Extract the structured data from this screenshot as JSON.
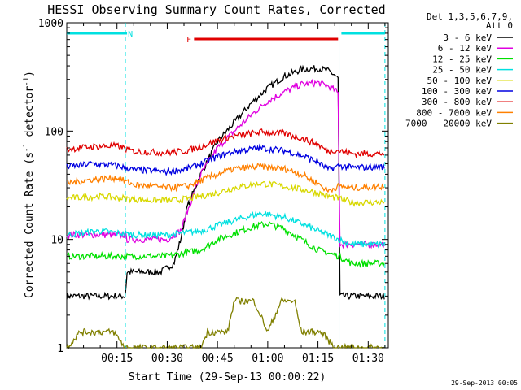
{
  "chart_data": {
    "type": "line",
    "title": "HESSI Observing Summary Count Rates, Corrected",
    "xlabel": "Start Time (29-Sep-13 00:00:22)",
    "ylabel_main": "Corrected Count Rate (s",
    "ylabel_sup": "-1",
    "ylabel_mid": " detector",
    "ylabel_sup2": "-1",
    "ylabel_end": ")",
    "yscale": "log",
    "ylim": [
      1,
      1000
    ],
    "xlim_min": [
      0,
      96
    ],
    "y_ticks": [
      {
        "value": 1,
        "label": "1"
      },
      {
        "value": 10,
        "label": "10"
      },
      {
        "value": 100,
        "label": "100"
      },
      {
        "value": 1000,
        "label": "1000"
      }
    ],
    "x_ticks": [
      {
        "value": 15,
        "label": "00:15"
      },
      {
        "value": 30,
        "label": "00:30"
      },
      {
        "value": 45,
        "label": "00:45"
      },
      {
        "value": 60,
        "label": "01:00"
      },
      {
        "value": 75,
        "label": "01:15"
      },
      {
        "value": 90,
        "label": "01:30"
      }
    ],
    "legend": {
      "header": [
        "Det 1,3,5,6,7,9,",
        "Att 0"
      ],
      "placement": "right"
    },
    "flags": [
      {
        "label": "N",
        "color": "#00e0e0",
        "segments": [
          [
            0,
            18
          ],
          [
            82,
            95
          ]
        ],
        "label_at": 19
      },
      {
        "label": "F",
        "color": "#e00000",
        "segments": [
          [
            38,
            81
          ]
        ],
        "label_at": 36.5
      }
    ],
    "boundaries": [
      {
        "x": 17.5,
        "style": "dashed"
      },
      {
        "x": 81.3,
        "style": "solid"
      },
      {
        "x": 95,
        "style": "dashed"
      }
    ],
    "series": [
      {
        "name": "3 - 6 keV",
        "color": "#000000",
        "points": [
          [
            0,
            3
          ],
          [
            17.5,
            3
          ],
          [
            18,
            5
          ],
          [
            28,
            5
          ],
          [
            32,
            6
          ],
          [
            34,
            10
          ],
          [
            36,
            20
          ],
          [
            40,
            40
          ],
          [
            45,
            80
          ],
          [
            50,
            120
          ],
          [
            55,
            180
          ],
          [
            60,
            250
          ],
          [
            65,
            320
          ],
          [
            70,
            370
          ],
          [
            75,
            380
          ],
          [
            78,
            360
          ],
          [
            80,
            330
          ],
          [
            81.2,
            300
          ],
          [
            81.4,
            3
          ],
          [
            95,
            3
          ]
        ]
      },
      {
        "name": "6 - 12 keV",
        "color": "#e000e0",
        "points": [
          [
            0,
            11
          ],
          [
            17.5,
            11
          ],
          [
            18,
            10
          ],
          [
            30,
            10
          ],
          [
            34,
            12
          ],
          [
            36,
            18
          ],
          [
            40,
            40
          ],
          [
            45,
            70
          ],
          [
            50,
            100
          ],
          [
            55,
            140
          ],
          [
            60,
            190
          ],
          [
            65,
            230
          ],
          [
            70,
            270
          ],
          [
            75,
            280
          ],
          [
            78,
            260
          ],
          [
            80,
            240
          ],
          [
            81.2,
            220
          ],
          [
            81.4,
            9
          ],
          [
            95,
            9
          ]
        ]
      },
      {
        "name": "12 - 25 keV",
        "color": "#00e000",
        "points": [
          [
            0,
            7
          ],
          [
            10,
            7
          ],
          [
            20,
            7
          ],
          [
            30,
            7
          ],
          [
            40,
            8
          ],
          [
            45,
            10
          ],
          [
            55,
            13
          ],
          [
            60,
            14
          ],
          [
            65,
            12.5
          ],
          [
            70,
            10
          ],
          [
            75,
            8
          ],
          [
            78,
            7.5
          ],
          [
            81.3,
            7
          ],
          [
            85,
            6
          ],
          [
            95,
            6
          ]
        ]
      },
      {
        "name": "25 - 50 keV",
        "color": "#00e0e0",
        "points": [
          [
            0,
            11
          ],
          [
            10,
            12
          ],
          [
            20,
            11
          ],
          [
            30,
            11
          ],
          [
            40,
            12
          ],
          [
            50,
            15
          ],
          [
            58,
            17.5
          ],
          [
            65,
            16
          ],
          [
            70,
            14
          ],
          [
            75,
            12
          ],
          [
            78,
            11
          ],
          [
            81.3,
            10
          ],
          [
            85,
            9
          ],
          [
            95,
            9
          ]
        ]
      },
      {
        "name": "50 - 100 keV",
        "color": "#d8d800",
        "points": [
          [
            0,
            24
          ],
          [
            10,
            25
          ],
          [
            17.5,
            24
          ],
          [
            25,
            23
          ],
          [
            33,
            23
          ],
          [
            40,
            25
          ],
          [
            45,
            27
          ],
          [
            50,
            30
          ],
          [
            58,
            33
          ],
          [
            65,
            31
          ],
          [
            70,
            29
          ],
          [
            75,
            27
          ],
          [
            78,
            25
          ],
          [
            81.3,
            24
          ],
          [
            85,
            22
          ],
          [
            95,
            22
          ]
        ]
      },
      {
        "name": "100 - 300 keV",
        "color": "#0000e0",
        "points": [
          [
            0,
            47
          ],
          [
            8,
            50
          ],
          [
            15,
            48
          ],
          [
            20,
            44
          ],
          [
            30,
            42
          ],
          [
            36,
            45
          ],
          [
            40,
            50
          ],
          [
            45,
            58
          ],
          [
            50,
            65
          ],
          [
            58,
            70
          ],
          [
            65,
            66
          ],
          [
            70,
            60
          ],
          [
            75,
            52
          ],
          [
            78,
            44
          ],
          [
            80,
            46
          ],
          [
            81.3,
            48
          ],
          [
            85,
            46
          ],
          [
            95,
            47
          ]
        ]
      },
      {
        "name": "300 - 800 keV",
        "color": "#e00000",
        "points": [
          [
            0,
            68
          ],
          [
            8,
            72
          ],
          [
            15,
            73
          ],
          [
            20,
            65
          ],
          [
            30,
            63
          ],
          [
            36,
            66
          ],
          [
            40,
            72
          ],
          [
            45,
            82
          ],
          [
            50,
            90
          ],
          [
            58,
            98
          ],
          [
            65,
            95
          ],
          [
            70,
            86
          ],
          [
            75,
            75
          ],
          [
            78,
            65
          ],
          [
            80,
            67
          ],
          [
            81.3,
            66
          ],
          [
            85,
            62
          ],
          [
            95,
            62
          ]
        ]
      },
      {
        "name": "800 - 7000 keV",
        "color": "#ff8000",
        "points": [
          [
            0,
            33
          ],
          [
            8,
            36
          ],
          [
            15,
            37
          ],
          [
            20,
            32
          ],
          [
            30,
            30
          ],
          [
            36,
            31
          ],
          [
            40,
            35
          ],
          [
            45,
            40
          ],
          [
            50,
            45
          ],
          [
            58,
            47
          ],
          [
            65,
            45
          ],
          [
            70,
            40
          ],
          [
            75,
            33
          ],
          [
            78,
            28
          ],
          [
            80,
            30
          ],
          [
            81.3,
            31
          ],
          [
            85,
            30
          ],
          [
            95,
            31
          ]
        ]
      },
      {
        "name": "7000 - 20000 keV",
        "color": "#808000",
        "points": [
          [
            0,
            1
          ],
          [
            4,
            1.4
          ],
          [
            10,
            1.4
          ],
          [
            14,
            1.4
          ],
          [
            17.5,
            1
          ],
          [
            40,
            1
          ],
          [
            42,
            1.4
          ],
          [
            48,
            1.4
          ],
          [
            50,
            2.7
          ],
          [
            56,
            2.7
          ],
          [
            60,
            1.4
          ],
          [
            64,
            2.7
          ],
          [
            68,
            2.7
          ],
          [
            70,
            1.4
          ],
          [
            76,
            1.4
          ],
          [
            80,
            1
          ],
          [
            95,
            1
          ]
        ]
      }
    ]
  },
  "footer": {
    "stamp": "29-Sep-2013 00:05"
  }
}
